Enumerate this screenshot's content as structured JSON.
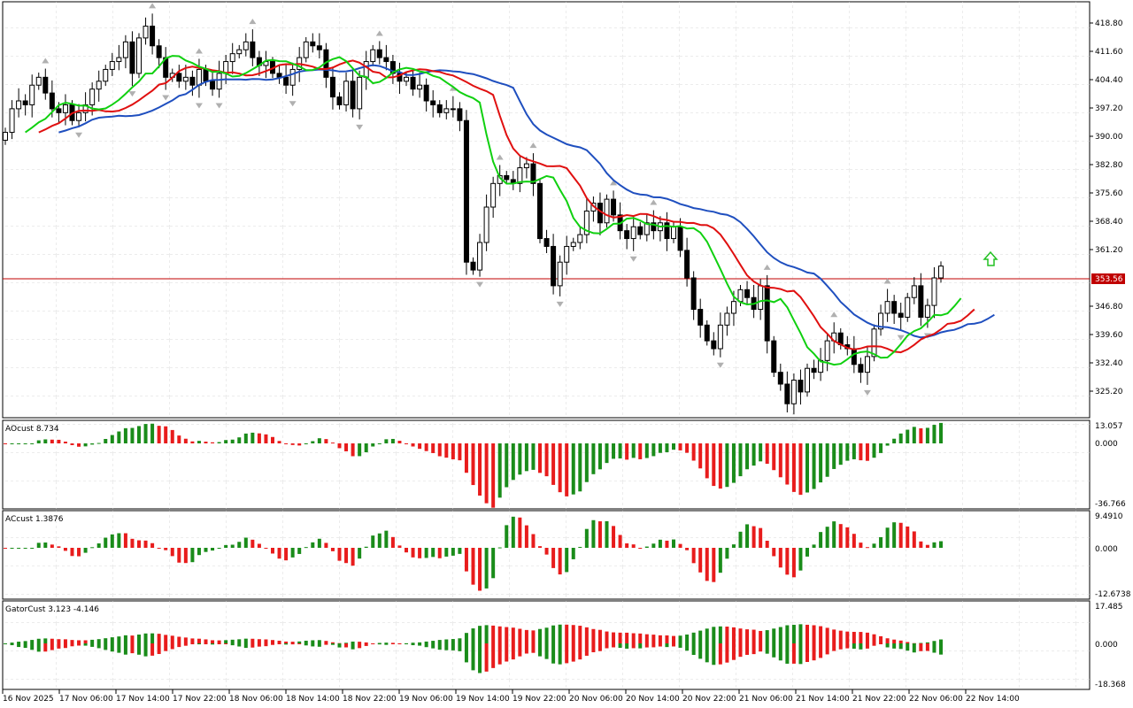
{
  "price_scale": [
    "418.80",
    "411.60",
    "404.40",
    "397.20",
    "390.00",
    "382.80",
    "375.60",
    "368.40",
    "361.20",
    "346.80",
    "339.60",
    "332.40",
    "325.20"
  ],
  "current_price": "353.56",
  "ao": {
    "label": "AOcust 8.734",
    "scale": [
      "13.057",
      "0.000",
      "-36.766"
    ]
  },
  "ac": {
    "label": "ACcust 1.3876",
    "scale": [
      "9.4910",
      "0.000",
      "-12.6738"
    ]
  },
  "gator": {
    "label": "GatorCust 3.123 -4.146",
    "scale": [
      "17.485",
      "0.000",
      "-18.368"
    ]
  },
  "time_labels": [
    "16 Nov 2025",
    "17 Nov 06:00",
    "17 Nov 14:00",
    "17 Nov 22:00",
    "18 Nov 06:00",
    "18 Nov 14:00",
    "18 Nov 22:00",
    "19 Nov 06:00",
    "19 Nov 14:00",
    "19 Nov 22:00",
    "20 Nov 06:00",
    "20 Nov 14:00",
    "20 Nov 22:00",
    "21 Nov 06:00",
    "21 Nov 14:00",
    "21 Nov 22:00",
    "22 Nov 06:00",
    "22 Nov 14:00"
  ],
  "colors": {
    "jaw": "#1f4fbf",
    "teeth": "#e01010",
    "lips": "#10d010",
    "up": "#1a8c1a",
    "down": "#e81c1c",
    "price_line": "#c00000",
    "signal": "#22c022"
  },
  "chart_data": {
    "type": "candlestick",
    "timeframe_hint": "hourly",
    "ylim": [
      320.0,
      423.0
    ],
    "price_line": 353.56,
    "closes": [
      391,
      397,
      399,
      398,
      403,
      405,
      401,
      397,
      396,
      398,
      394,
      396,
      398,
      402,
      404,
      407,
      409,
      410,
      414,
      406,
      415,
      418,
      413,
      410,
      405,
      406,
      404,
      405,
      403,
      407,
      404,
      402,
      406,
      409,
      411,
      412,
      414,
      410,
      408,
      409,
      406,
      405,
      403,
      407,
      410,
      414,
      413,
      412,
      405,
      400,
      398,
      404,
      397,
      405,
      409,
      412,
      410,
      409,
      406,
      404,
      405,
      402,
      403,
      399,
      398,
      396,
      397,
      397,
      394,
      358,
      356,
      363,
      372,
      378,
      380,
      379,
      378,
      382,
      383,
      378,
      364,
      362,
      352,
      358,
      362,
      363,
      365,
      371,
      373,
      368,
      374,
      370,
      366,
      364,
      367,
      365,
      368,
      366,
      368,
      364,
      367,
      361,
      354,
      346,
      342,
      338,
      336,
      342,
      345,
      348,
      351,
      349,
      346,
      352,
      338,
      330,
      327,
      322,
      328,
      325,
      331,
      330,
      333,
      338,
      340,
      337,
      336,
      332,
      330,
      334,
      341,
      345,
      348,
      345,
      344,
      349,
      352,
      344,
      347,
      354,
      357
    ]
  }
}
